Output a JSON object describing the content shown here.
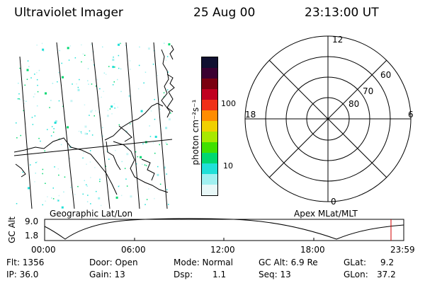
{
  "header": {
    "instrument": "Ultraviolet Imager",
    "date": "25 Aug 00",
    "time": "23:13:00 UT"
  },
  "map_panel": {
    "caption": "Geographic Lat/Lon"
  },
  "colorbar": {
    "unit_label": "photon cm⁻²s⁻¹",
    "ticks": [
      "100",
      "10"
    ],
    "colors": [
      "#101030",
      "#3a0030",
      "#7a0010",
      "#c00020",
      "#f03018",
      "#ff8c00",
      "#f0d000",
      "#a8e800",
      "#40e000",
      "#00d870",
      "#20e0d8",
      "#a0f0f0",
      "#e8f8f8"
    ]
  },
  "polar_plot": {
    "caption": "Apex MLat/MLT",
    "mlt_labels": {
      "top": "12",
      "bottom": "0",
      "left": "18",
      "right": "6"
    },
    "lat_labels": [
      "60",
      "70",
      "80"
    ]
  },
  "altitude_strip": {
    "ylabel": "GC Alt",
    "ymax": "9.0",
    "ymin": "1.8",
    "xticks": [
      "00:00",
      "06:00",
      "12:00",
      "18:00",
      "23:59"
    ],
    "current_time_marker_color": "#d00000"
  },
  "info": {
    "flt": "Flt: 1356",
    "ip": "IP: 36.0",
    "door": "Door: Open",
    "gain": "Gain: 13",
    "mode": "Mode: Normal",
    "dsp_label": "Dsp:",
    "dsp_value": "1.1",
    "gcalt": "GC Alt: 6.9 Re",
    "seq": "Seq: 13",
    "glat_label": "GLat:",
    "glat_value": "9.2",
    "glon_label": "GLon:",
    "glon_value": "37.2"
  }
}
